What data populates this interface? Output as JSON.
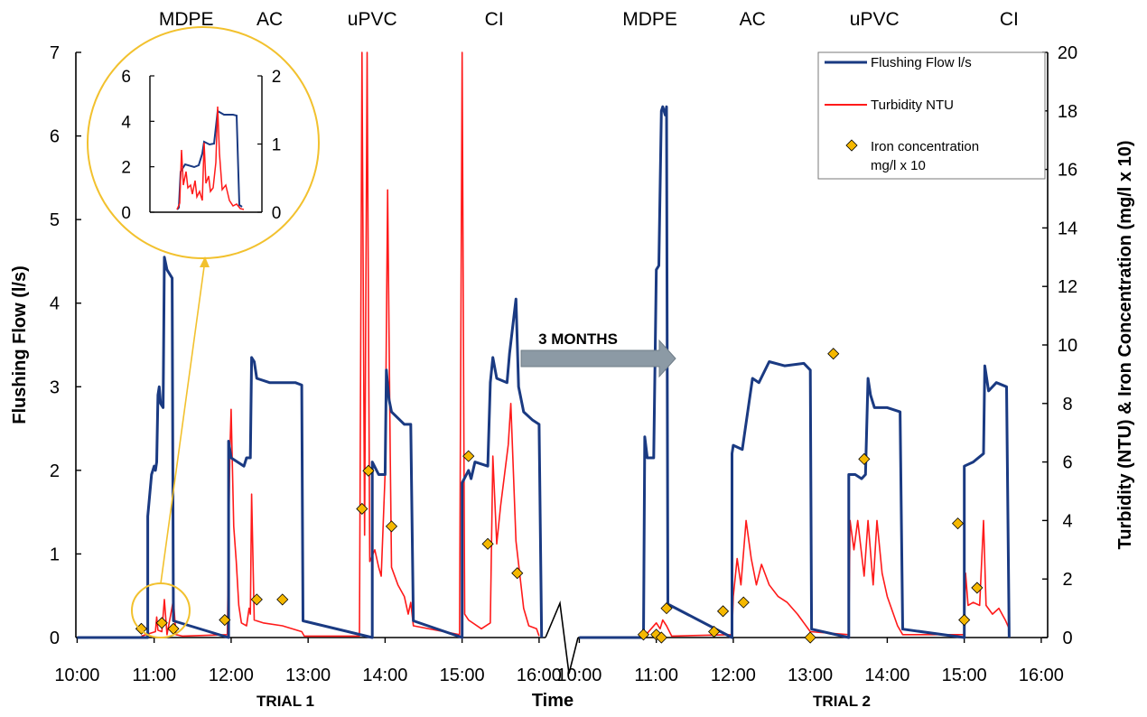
{
  "chart_data": {
    "type": "line",
    "xlabel": "Time",
    "ylabel_left": "Flushing Flow (l/s)",
    "ylabel_right": "Turbidity  (NTU) & Iron Concentration  (mg/l x 10)",
    "ylim_left": [
      0,
      7
    ],
    "ylim_right": [
      0,
      20
    ],
    "yticks_left": [
      "0",
      "1",
      "2",
      "3",
      "4",
      "5",
      "6",
      "7"
    ],
    "yticks_right": [
      "0",
      "2",
      "4",
      "6",
      "8",
      "10",
      "12",
      "14",
      "16",
      "18",
      "20"
    ],
    "annotation": "3 MONTHS",
    "legend_position": "top-right",
    "legend": {
      "flow": "Flushing Flow l/s",
      "turbidity": "Turbidity NTU",
      "iron_line1": "Iron concentration",
      "iron_line2": "mg/l x 10"
    },
    "colors": {
      "flow": "#1a3a82",
      "turbidity": "#ff1a1a",
      "iron": "#f5b800",
      "inset": "#f2c12e",
      "arrow": "#8c9aa5"
    },
    "panels": [
      {
        "name": "TRIAL 1",
        "xticks": [
          "10:00",
          "11:00",
          "12:00",
          "13:00",
          "14:00",
          "15:00",
          "16:00"
        ],
        "materials": [
          {
            "label": "MDPE",
            "at": "11:25"
          },
          {
            "label": "AC",
            "at": "12:30"
          },
          {
            "label": "uPVC",
            "at": "13:50"
          },
          {
            "label": "CI",
            "at": "15:25"
          }
        ],
        "flow": [
          [
            "10:00",
            0
          ],
          [
            "10:55",
            0
          ],
          [
            "10:55",
            1.45
          ],
          [
            "10:58",
            1.95
          ],
          [
            "11:00",
            2.05
          ],
          [
            "11:01",
            2.0
          ],
          [
            "11:02",
            2.1
          ],
          [
            "11:03",
            2.9
          ],
          [
            "11:04",
            3.0
          ],
          [
            "11:05",
            2.8
          ],
          [
            "11:07",
            2.75
          ],
          [
            "11:08",
            4.55
          ],
          [
            "11:10",
            4.4
          ],
          [
            "11:14",
            4.3
          ],
          [
            "11:15",
            0.2
          ],
          [
            "11:58",
            0
          ],
          [
            "11:58",
            2.35
          ],
          [
            "12:00",
            2.15
          ],
          [
            "12:10",
            2.05
          ],
          [
            "12:12",
            2.15
          ],
          [
            "12:15",
            2.15
          ],
          [
            "12:16",
            3.35
          ],
          [
            "12:18",
            3.3
          ],
          [
            "12:20",
            3.1
          ],
          [
            "12:30",
            3.05
          ],
          [
            "12:50",
            3.05
          ],
          [
            "12:55",
            3.02
          ],
          [
            "12:56",
            0.2
          ],
          [
            "13:50",
            0
          ],
          [
            "13:50",
            2.1
          ],
          [
            "13:55",
            1.95
          ],
          [
            "14:00",
            1.95
          ],
          [
            "14:01",
            3.2
          ],
          [
            "14:03",
            2.85
          ],
          [
            "14:05",
            2.7
          ],
          [
            "14:15",
            2.55
          ],
          [
            "14:20",
            2.55
          ],
          [
            "14:22",
            0.2
          ],
          [
            "15:00",
            0
          ],
          [
            "15:00",
            1.85
          ],
          [
            "15:05",
            2.0
          ],
          [
            "15:07",
            1.9
          ],
          [
            "15:10",
            2.1
          ],
          [
            "15:20",
            2.05
          ],
          [
            "15:22",
            3.05
          ],
          [
            "15:24",
            3.35
          ],
          [
            "15:27",
            3.1
          ],
          [
            "15:35",
            3.05
          ],
          [
            "15:37",
            3.4
          ],
          [
            "15:42",
            4.05
          ],
          [
            "15:44",
            3.0
          ],
          [
            "15:48",
            2.7
          ],
          [
            "15:55",
            2.6
          ],
          [
            "16:00",
            2.55
          ],
          [
            "16:02",
            0
          ]
        ],
        "turbidity": [
          [
            "10:50",
            0.05
          ],
          [
            "11:01",
            0.2
          ],
          [
            "11:02",
            0.7
          ],
          [
            "11:03",
            0.25
          ],
          [
            "11:06",
            0.2
          ],
          [
            "11:08",
            1.3
          ],
          [
            "11:10",
            0.1
          ],
          [
            "11:13",
            0.8
          ],
          [
            "11:15",
            1.3
          ],
          [
            "11:17",
            0.1
          ],
          [
            "11:22",
            0.05
          ],
          [
            "11:57",
            0.1
          ],
          [
            "11:59",
            6.3
          ],
          [
            "12:00",
            7.8
          ],
          [
            "12:02",
            3.8
          ],
          [
            "12:04",
            2.6
          ],
          [
            "12:06",
            1.1
          ],
          [
            "12:08",
            0.5
          ],
          [
            "12:10",
            0.45
          ],
          [
            "12:12",
            0.4
          ],
          [
            "12:14",
            1.0
          ],
          [
            "12:15",
            0.8
          ],
          [
            "12:16",
            4.9
          ],
          [
            "12:18",
            0.6
          ],
          [
            "12:25",
            0.5
          ],
          [
            "12:40",
            0.4
          ],
          [
            "12:55",
            0.2
          ],
          [
            "12:57",
            0.05
          ],
          [
            "13:40",
            0.05
          ],
          [
            "13:42",
            20.0
          ],
          [
            "13:44",
            3.5
          ],
          [
            "13:46",
            20.0
          ],
          [
            "13:48",
            2.6
          ],
          [
            "13:52",
            3.0
          ],
          [
            "13:55",
            2.4
          ],
          [
            "13:57",
            2.1
          ],
          [
            "14:00",
            5.6
          ],
          [
            "14:02",
            15.3
          ],
          [
            "14:04",
            6.2
          ],
          [
            "14:05",
            2.4
          ],
          [
            "14:10",
            1.8
          ],
          [
            "14:15",
            1.4
          ],
          [
            "14:18",
            0.8
          ],
          [
            "14:20",
            1.2
          ],
          [
            "14:22",
            0.4
          ],
          [
            "14:58",
            0.1
          ],
          [
            "15:00",
            20.0
          ],
          [
            "15:02",
            0.8
          ],
          [
            "15:05",
            0.6
          ],
          [
            "15:15",
            0.3
          ],
          [
            "15:22",
            0.5
          ],
          [
            "15:24",
            6.2
          ],
          [
            "15:27",
            3.2
          ],
          [
            "15:30",
            4.5
          ],
          [
            "15:36",
            6.6
          ],
          [
            "15:38",
            8.0
          ],
          [
            "15:42",
            3.3
          ],
          [
            "15:48",
            1.0
          ],
          [
            "15:52",
            0.4
          ],
          [
            "15:58",
            0.3
          ],
          [
            "16:00",
            0.05
          ]
        ],
        "iron": [
          [
            "10:50",
            0.3
          ],
          [
            "11:06",
            0.5
          ],
          [
            "11:15",
            0.3
          ],
          [
            "11:55",
            0.6
          ],
          [
            "12:20",
            1.3
          ],
          [
            "12:40",
            1.3
          ],
          [
            "13:42",
            4.4
          ],
          [
            "13:47",
            5.7
          ],
          [
            "14:05",
            3.8
          ],
          [
            "15:05",
            6.2
          ],
          [
            "15:20",
            3.2
          ],
          [
            "15:43",
            2.2
          ]
        ]
      },
      {
        "name": "TRIAL 2",
        "xticks": [
          "10:00",
          "11:00",
          "12:00",
          "13:00",
          "14:00",
          "15:00",
          "16:00"
        ],
        "materials": [
          {
            "label": "MDPE",
            "at": "10:55"
          },
          {
            "label": "AC",
            "at": "12:15"
          },
          {
            "label": "uPVC",
            "at": "13:50"
          },
          {
            "label": "CI",
            "at": "15:35"
          }
        ],
        "flow": [
          [
            "10:00",
            0
          ],
          [
            "10:50",
            0
          ],
          [
            "10:51",
            2.4
          ],
          [
            "10:53",
            2.15
          ],
          [
            "10:58",
            2.15
          ],
          [
            "11:00",
            4.4
          ],
          [
            "11:02",
            4.45
          ],
          [
            "11:04",
            6.3
          ],
          [
            "11:05",
            6.35
          ],
          [
            "11:07",
            6.25
          ],
          [
            "11:08",
            6.35
          ],
          [
            "11:09",
            0.4
          ],
          [
            "11:59",
            0
          ],
          [
            "11:59",
            2.2
          ],
          [
            "12:00",
            2.3
          ],
          [
            "12:07",
            2.25
          ],
          [
            "12:15",
            3.1
          ],
          [
            "12:20",
            3.05
          ],
          [
            "12:28",
            3.3
          ],
          [
            "12:40",
            3.25
          ],
          [
            "12:55",
            3.28
          ],
          [
            "13:00",
            3.2
          ],
          [
            "13:01",
            0.1
          ],
          [
            "13:30",
            0
          ],
          [
            "13:30",
            1.95
          ],
          [
            "13:35",
            1.95
          ],
          [
            "13:40",
            1.9
          ],
          [
            "13:43",
            1.95
          ],
          [
            "13:45",
            3.1
          ],
          [
            "13:47",
            2.9
          ],
          [
            "13:50",
            2.75
          ],
          [
            "14:00",
            2.75
          ],
          [
            "14:10",
            2.7
          ],
          [
            "14:12",
            0.1
          ],
          [
            "15:00",
            0
          ],
          [
            "15:00",
            2.05
          ],
          [
            "15:07",
            2.1
          ],
          [
            "15:15",
            2.2
          ],
          [
            "15:16",
            3.25
          ],
          [
            "15:19",
            2.95
          ],
          [
            "15:25",
            3.05
          ],
          [
            "15:33",
            3.0
          ],
          [
            "15:35",
            0
          ]
        ],
        "turbidity": [
          [
            "10:52",
            0.1
          ],
          [
            "11:00",
            0.5
          ],
          [
            "11:03",
            0.3
          ],
          [
            "11:05",
            0.6
          ],
          [
            "11:08",
            0.4
          ],
          [
            "11:12",
            0.05
          ],
          [
            "11:59",
            0.1
          ],
          [
            "12:00",
            1.4
          ],
          [
            "12:03",
            2.7
          ],
          [
            "12:06",
            1.8
          ],
          [
            "12:10",
            4.0
          ],
          [
            "12:14",
            2.7
          ],
          [
            "12:18",
            1.8
          ],
          [
            "12:22",
            2.5
          ],
          [
            "12:28",
            1.8
          ],
          [
            "12:35",
            1.4
          ],
          [
            "12:42",
            1.2
          ],
          [
            "12:50",
            0.8
          ],
          [
            "13:00",
            0.2
          ],
          [
            "13:30",
            0.1
          ],
          [
            "13:31",
            4.0
          ],
          [
            "13:34",
            3.0
          ],
          [
            "13:37",
            4.0
          ],
          [
            "13:42",
            2.1
          ],
          [
            "13:45",
            4.0
          ],
          [
            "13:49",
            1.8
          ],
          [
            "13:52",
            4.0
          ],
          [
            "13:56",
            2.2
          ],
          [
            "14:00",
            1.4
          ],
          [
            "14:08",
            0.4
          ],
          [
            "14:12",
            0.1
          ],
          [
            "15:00",
            0.1
          ],
          [
            "15:01",
            2.2
          ],
          [
            "15:03",
            1.1
          ],
          [
            "15:07",
            1.2
          ],
          [
            "15:12",
            1.1
          ],
          [
            "15:15",
            4.0
          ],
          [
            "15:17",
            1.1
          ],
          [
            "15:22",
            0.8
          ],
          [
            "15:27",
            1.0
          ],
          [
            "15:32",
            0.6
          ],
          [
            "15:35",
            0.3
          ]
        ],
        "iron": [
          [
            "10:50",
            0.1
          ],
          [
            "11:00",
            0.1
          ],
          [
            "11:04",
            0.0
          ],
          [
            "11:08",
            1.0
          ],
          [
            "11:45",
            0.2
          ],
          [
            "11:52",
            0.9
          ],
          [
            "12:08",
            1.2
          ],
          [
            "13:00",
            0.0
          ],
          [
            "13:18",
            9.7
          ],
          [
            "13:42",
            6.1
          ],
          [
            "14:55",
            3.9
          ],
          [
            "15:00",
            0.6
          ],
          [
            "15:10",
            1.7
          ]
        ]
      }
    ],
    "inset": {
      "yticks_left": [
        "0",
        "2",
        "4",
        "6"
      ],
      "yticks_right": [
        "0",
        "1",
        "2"
      ],
      "ylim_left": [
        0,
        6
      ],
      "ylim_right": [
        0,
        2
      ]
    }
  }
}
